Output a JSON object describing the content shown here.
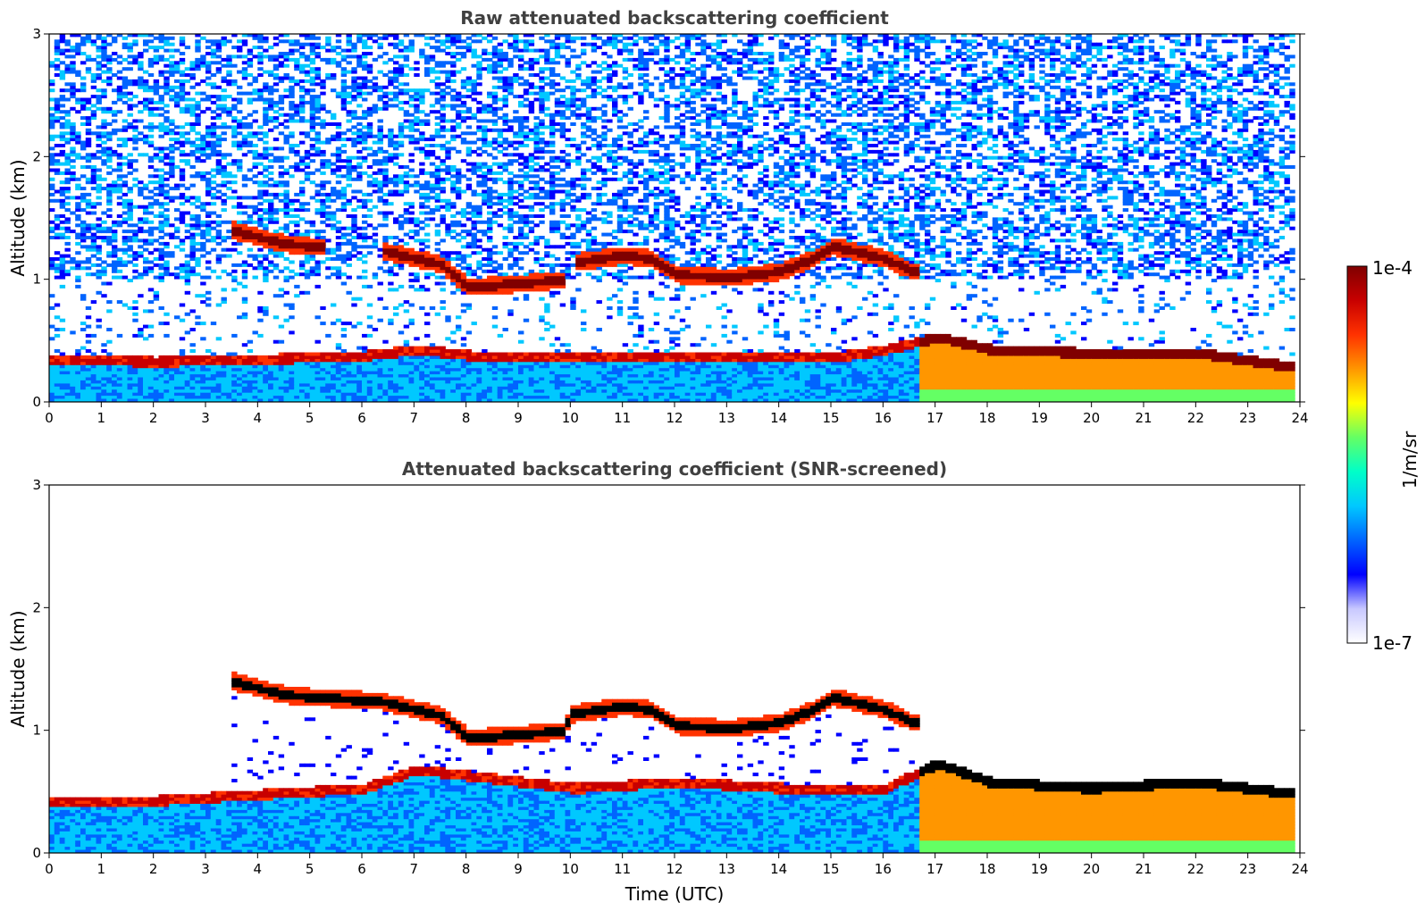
{
  "colors": {
    "colormap": [
      "#ffffff",
      "#c8c8ff",
      "#0000ff",
      "#0064ff",
      "#00c8ff",
      "#00ffc8",
      "#64ff64",
      "#ffff00",
      "#ff9600",
      "#ff3200",
      "#c80000",
      "#800000"
    ],
    "screened_peak": "#000000",
    "title": "#404040"
  },
  "chart_data": [
    {
      "type": "heatmap",
      "title": "Raw attenuated backscattering coefficient",
      "xlabel": "",
      "ylabel": "Altitude (km)",
      "xlim": [
        0,
        24
      ],
      "ylim": [
        0,
        3
      ],
      "xticks": [
        "0",
        "1",
        "2",
        "3",
        "4",
        "5",
        "6",
        "7",
        "8",
        "9",
        "10",
        "11",
        "12",
        "13",
        "14",
        "15",
        "16",
        "17",
        "18",
        "19",
        "20",
        "21",
        "22",
        "23",
        "24"
      ],
      "yticks": [
        "0",
        "1",
        "2",
        "3"
      ],
      "data_range": [
        0,
        23.9
      ],
      "features": {
        "boundary_layer_top_km": [
          [
            0,
            0.37
          ],
          [
            2,
            0.35
          ],
          [
            4,
            0.37
          ],
          [
            6,
            0.4
          ],
          [
            7,
            0.45
          ],
          [
            8,
            0.4
          ],
          [
            9,
            0.38
          ],
          [
            10,
            0.38
          ],
          [
            12,
            0.4
          ],
          [
            14,
            0.38
          ],
          [
            15,
            0.38
          ],
          [
            16,
            0.45
          ],
          [
            17,
            0.55
          ],
          [
            18,
            0.45
          ],
          [
            20,
            0.42
          ],
          [
            22,
            0.42
          ],
          [
            23.9,
            0.3
          ]
        ],
        "cloud_layer_km": [
          [
            3.5,
            1.38
          ],
          [
            4.5,
            1.27
          ],
          [
            5.1,
            1.25
          ],
          [
            6.3,
            1.22
          ],
          [
            7.5,
            1.1
          ],
          [
            8,
            0.92
          ],
          [
            9,
            0.95
          ],
          [
            9.8,
            0.98
          ],
          [
            10,
            1.12
          ],
          [
            11,
            1.18
          ],
          [
            11.5,
            1.15
          ],
          [
            12,
            1.02
          ],
          [
            13,
            1.0
          ],
          [
            14,
            1.05
          ],
          [
            14.6,
            1.15
          ],
          [
            15,
            1.25
          ],
          [
            16,
            1.15
          ],
          [
            16.5,
            1.05
          ]
        ],
        "cloud_gaps_utc": [
          [
            5.2,
            6.3
          ],
          [
            9.85,
            10.0
          ]
        ]
      }
    },
    {
      "type": "heatmap",
      "title": "Attenuated backscattering coefficient (SNR-screened)",
      "xlabel": "Time (UTC)",
      "ylabel": "Altitude (km)",
      "xlim": [
        0,
        24
      ],
      "ylim": [
        0,
        3
      ],
      "xticks": [
        "0",
        "1",
        "2",
        "3",
        "4",
        "5",
        "6",
        "7",
        "8",
        "9",
        "10",
        "11",
        "12",
        "13",
        "14",
        "15",
        "16",
        "17",
        "18",
        "19",
        "20",
        "21",
        "22",
        "23",
        "24"
      ],
      "yticks": [
        "0",
        "1",
        "2",
        "3"
      ],
      "data_range": [
        0,
        23.9
      ],
      "features": {
        "boundary_layer_top_km": [
          [
            0,
            0.45
          ],
          [
            2,
            0.45
          ],
          [
            4,
            0.5
          ],
          [
            6,
            0.55
          ],
          [
            7,
            0.7
          ],
          [
            8,
            0.65
          ],
          [
            9,
            0.6
          ],
          [
            10,
            0.55
          ],
          [
            12,
            0.6
          ],
          [
            14,
            0.55
          ],
          [
            15,
            0.55
          ],
          [
            16,
            0.55
          ],
          [
            17,
            0.75
          ],
          [
            18,
            0.6
          ],
          [
            20,
            0.55
          ],
          [
            22,
            0.6
          ],
          [
            23.9,
            0.5
          ]
        ],
        "cloud_layer_km": [
          [
            3.5,
            1.38
          ],
          [
            4.5,
            1.27
          ],
          [
            5.1,
            1.25
          ],
          [
            6.3,
            1.22
          ],
          [
            7.5,
            1.1
          ],
          [
            8,
            0.92
          ],
          [
            9,
            0.95
          ],
          [
            9.8,
            0.98
          ],
          [
            10,
            1.12
          ],
          [
            11,
            1.18
          ],
          [
            11.5,
            1.15
          ],
          [
            12,
            1.02
          ],
          [
            13,
            1.0
          ],
          [
            14,
            1.05
          ],
          [
            14.6,
            1.15
          ],
          [
            15,
            1.25
          ],
          [
            16,
            1.15
          ],
          [
            16.5,
            1.05
          ]
        ]
      }
    }
  ],
  "colorbar": {
    "max_label": "1e-4",
    "min_label": "1e-7",
    "label": "1/m/sr"
  }
}
